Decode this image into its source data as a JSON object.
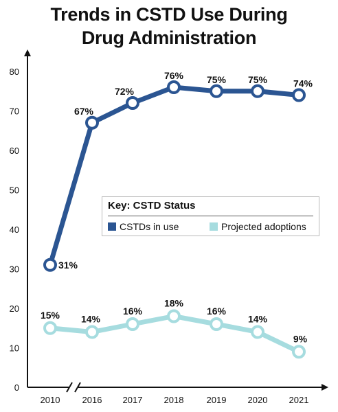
{
  "title_line1": "Trends in CSTD Use During",
  "title_line2": "Drug Administration",
  "chart_data": {
    "type": "line",
    "categories": [
      "2010",
      "2016",
      "2017",
      "2018",
      "2019",
      "2020",
      "2021"
    ],
    "ylim": [
      0,
      80
    ],
    "yticks": [
      0,
      10,
      20,
      30,
      40,
      50,
      60,
      70,
      80
    ],
    "axis_break_after": "2010",
    "grid": false,
    "legend_placement": "center-right",
    "legend_title": "Key: CSTD Status",
    "series": [
      {
        "name": "CSTDs in use",
        "color": "#2b5592",
        "values": [
          31,
          67,
          72,
          76,
          75,
          75,
          74
        ],
        "labels": [
          "31%",
          "67%",
          "72%",
          "76%",
          "75%",
          "75%",
          "74%"
        ]
      },
      {
        "name": "Projected adoptions",
        "color": "#a6dcdf",
        "values": [
          15,
          14,
          16,
          18,
          16,
          14,
          9
        ],
        "labels": [
          "15%",
          "14%",
          "16%",
          "18%",
          "16%",
          "14%",
          "9%"
        ]
      }
    ]
  }
}
